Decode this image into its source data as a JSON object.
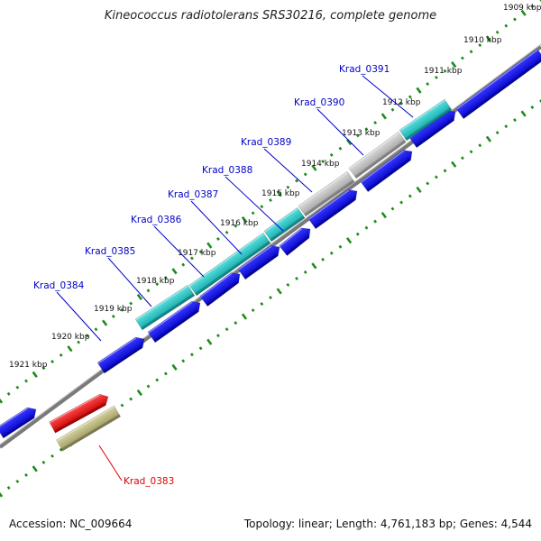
{
  "title": "Kineococcus radiotolerans SRS30216, complete genome",
  "footer": {
    "accession": "Accession: NC_009664",
    "summary": "Topology: linear; Length: 4,761,183 bp; Genes: 4,544"
  },
  "kbp_labels": [
    "1909 kbp",
    "1910 kbp",
    "1911 kbp",
    "1912 kbp",
    "1913 kbp",
    "1914 kbp",
    "1915 kbp",
    "1916 kbp",
    "1917 kbp",
    "1918 kbp",
    "1919 kbp",
    "1920 kbp",
    "1921 kbp"
  ],
  "gene_labels": [
    "Krad_0391",
    "Krad_0390",
    "Krad_0389",
    "Krad_0388",
    "Krad_0387",
    "Krad_0386",
    "Krad_0385",
    "Krad_0384",
    "Krad_0383"
  ],
  "colors": {
    "cds": "#0000e6",
    "gene_cyan": "#19bcbc",
    "gene_gray": "#b8b8b8",
    "highlight": "#e60000",
    "highlight_olive": "#b8b478",
    "tick": "#1e8c1e",
    "label_blue": "#0000c8",
    "label_red": "#e00000",
    "backbone": "#7a7a7a"
  }
}
